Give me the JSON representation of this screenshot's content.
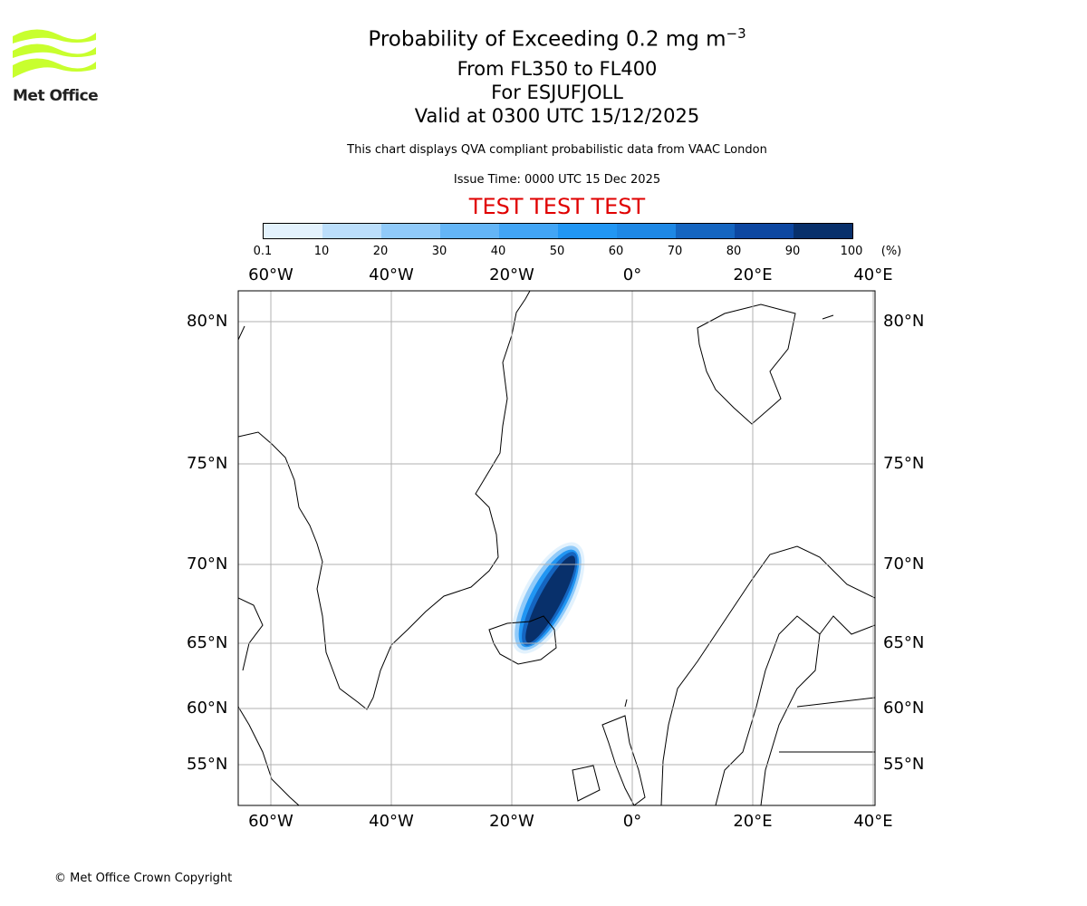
{
  "logo": {
    "text": "Met Office",
    "color": "#c8ff2e"
  },
  "title": {
    "main": "Probability of Exceeding 0.2 mg m",
    "superscript": "−3",
    "levels": "From FL350 to FL400",
    "volcano": "For ESJUFJOLL",
    "valid": "Valid at 0300 UTC 15/12/2025"
  },
  "subtitle": "This chart displays QVA compliant probabilistic data from VAAC London",
  "issue_time": "Issue Time: 0000 UTC 15 Dec 2025",
  "test_banner": "TEST TEST TEST",
  "colorbar": {
    "ticks": [
      "0.1",
      "10",
      "20",
      "30",
      "40",
      "50",
      "60",
      "70",
      "80",
      "90",
      "100"
    ],
    "unit": "(%)",
    "colors": [
      "#e3f2fd",
      "#bbdefb",
      "#90caf9",
      "#64b5f6",
      "#42a5f5",
      "#2196f3",
      "#1e88e5",
      "#1565c0",
      "#0d47a1",
      "#08306b"
    ]
  },
  "map": {
    "lon_labels": [
      "60°W",
      "40°W",
      "20°W",
      "0°",
      "20°E",
      "40°E"
    ],
    "lat_labels": [
      "80°N",
      "75°N",
      "70°N",
      "65°N",
      "60°N",
      "55°N"
    ]
  },
  "copyright": "© Met Office Crown Copyright"
}
